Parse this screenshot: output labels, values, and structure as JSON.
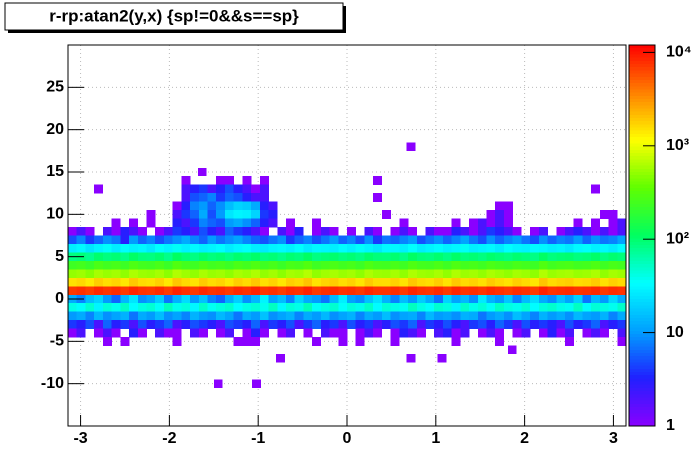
{
  "chart_data": {
    "type": "heatmap",
    "title": "r-rp:atan2(y,x) {sp!=0&&s==sp}",
    "xlim": [
      -3.1416,
      3.1416
    ],
    "ylim": [
      -15,
      30
    ],
    "zlim": [
      1,
      12000
    ],
    "logz": true,
    "grid": true,
    "xticks": [
      -3,
      -2,
      -1,
      0,
      1,
      2,
      3
    ],
    "yticks": [
      -10,
      -5,
      0,
      5,
      10,
      15,
      20,
      25
    ],
    "zticks": [
      1,
      10,
      {
        "value": 100,
        "label": "10²"
      },
      {
        "value": 1000,
        "label": "10³"
      },
      {
        "value": 10000,
        "label": "10⁴"
      }
    ],
    "palette": [
      "#8a00ff",
      "#2020ff",
      "#00a0ff",
      "#00ffff",
      "#00ff60",
      "#60ff00",
      "#ffff00",
      "#ff8000",
      "#ff0000"
    ],
    "y": [
      14,
      13,
      12,
      11,
      10,
      9,
      8,
      7,
      6,
      5,
      4,
      3,
      2,
      1,
      0,
      -1,
      -2,
      -3,
      -4,
      -5
    ],
    "z": [
      [
        null,
        null,
        null,
        null,
        null,
        null,
        null,
        null,
        null,
        null,
        null,
        null,
        null,
        1,
        null,
        null,
        null,
        1,
        1,
        null,
        1,
        null,
        1,
        null,
        null,
        null,
        null,
        null,
        null,
        null,
        null,
        null,
        null,
        null,
        null,
        1,
        null,
        null,
        null,
        null,
        null,
        null,
        null,
        null,
        null,
        null,
        null,
        null,
        null,
        null,
        null,
        null,
        null,
        null,
        null,
        null,
        null,
        null,
        null,
        null,
        null,
        null,
        null,
        null
      ],
      [
        null,
        null,
        null,
        1,
        null,
        null,
        null,
        null,
        null,
        null,
        null,
        null,
        null,
        2,
        3,
        4,
        2,
        3,
        5,
        3,
        2,
        1,
        2,
        null,
        null,
        null,
        null,
        null,
        null,
        null,
        null,
        null,
        null,
        null,
        null,
        null,
        null,
        null,
        null,
        null,
        null,
        null,
        null,
        null,
        null,
        null,
        null,
        null,
        null,
        null,
        null,
        null,
        null,
        null,
        null,
        null,
        null,
        null,
        null,
        null,
        1,
        null,
        null,
        null
      ],
      [
        null,
        null,
        null,
        null,
        null,
        null,
        null,
        null,
        null,
        null,
        null,
        null,
        null,
        2,
        5,
        6,
        8,
        4,
        6,
        5,
        3,
        2,
        2,
        null,
        null,
        null,
        null,
        null,
        null,
        null,
        null,
        null,
        null,
        null,
        null,
        1,
        null,
        null,
        null,
        null,
        null,
        null,
        null,
        null,
        null,
        null,
        null,
        null,
        null,
        null,
        null,
        null,
        null,
        null,
        null,
        null,
        null,
        null,
        null,
        null,
        null,
        null,
        null,
        null
      ],
      [
        null,
        null,
        null,
        null,
        null,
        null,
        null,
        null,
        null,
        null,
        null,
        null,
        1,
        3,
        8,
        10,
        6,
        9,
        15,
        20,
        18,
        12,
        3,
        2,
        null,
        null,
        null,
        null,
        null,
        null,
        null,
        null,
        null,
        null,
        null,
        null,
        null,
        null,
        null,
        null,
        null,
        null,
        null,
        null,
        null,
        null,
        null,
        null,
        null,
        1,
        1,
        null,
        null,
        null,
        null,
        null,
        null,
        null,
        null,
        null,
        null,
        null,
        null,
        null
      ],
      [
        null,
        null,
        null,
        null,
        null,
        null,
        null,
        null,
        null,
        1,
        null,
        null,
        2,
        4,
        6,
        12,
        5,
        10,
        25,
        30,
        28,
        20,
        4,
        3,
        null,
        null,
        null,
        null,
        null,
        null,
        null,
        null,
        null,
        null,
        null,
        null,
        1,
        null,
        null,
        null,
        null,
        null,
        null,
        null,
        null,
        null,
        null,
        null,
        1,
        2,
        1,
        null,
        null,
        null,
        null,
        null,
        null,
        null,
        null,
        null,
        null,
        1,
        1,
        null
      ],
      [
        null,
        null,
        null,
        null,
        null,
        1,
        null,
        1,
        null,
        1,
        null,
        null,
        3,
        2,
        4,
        8,
        6,
        5,
        10,
        12,
        9,
        6,
        3,
        2,
        null,
        1,
        null,
        null,
        1,
        null,
        null,
        null,
        null,
        null,
        null,
        null,
        null,
        null,
        1,
        null,
        null,
        null,
        null,
        null,
        1,
        null,
        1,
        2,
        1,
        2,
        1,
        null,
        null,
        null,
        null,
        null,
        null,
        null,
        1,
        null,
        1,
        null,
        1,
        2
      ],
      [
        1,
        2,
        1,
        null,
        2,
        1,
        3,
        2,
        1,
        null,
        1,
        2,
        4,
        3,
        2,
        5,
        3,
        2,
        6,
        4,
        3,
        2,
        1,
        null,
        2,
        1,
        3,
        null,
        1,
        2,
        1,
        null,
        1,
        null,
        2,
        1,
        null,
        1,
        2,
        1,
        null,
        2,
        1,
        1,
        3,
        2,
        1,
        2,
        4,
        3,
        2,
        1,
        null,
        1,
        2,
        null,
        1,
        2,
        3,
        2,
        1,
        2,
        1,
        2
      ],
      [
        5,
        8,
        4,
        6,
        9,
        7,
        3,
        10,
        6,
        8,
        5,
        7,
        9,
        12,
        8,
        6,
        10,
        7,
        9,
        11,
        8,
        6,
        5,
        7,
        9,
        4,
        6,
        8,
        5,
        7,
        10,
        6,
        8,
        5,
        9,
        4,
        7,
        6,
        8,
        10,
        5,
        7,
        9,
        6,
        8,
        11,
        7,
        5,
        9,
        6,
        8,
        10,
        7,
        5,
        9,
        6,
        8,
        7,
        10,
        6,
        9,
        7,
        8,
        11
      ],
      [
        28,
        32,
        25,
        30,
        35,
        27,
        33,
        29,
        31,
        26,
        34,
        30,
        36,
        29,
        32,
        28,
        30,
        33,
        27,
        31,
        35,
        28,
        26,
        30,
        32,
        29,
        34,
        27,
        31,
        30,
        28,
        33,
        29,
        35,
        30,
        26,
        32,
        31,
        28,
        34,
        27,
        30,
        33,
        29,
        31,
        36,
        28,
        30,
        32,
        27,
        34,
        30,
        29,
        33,
        31,
        28,
        30,
        26,
        32,
        35,
        29,
        31,
        27,
        33
      ],
      [
        85,
        92,
        78,
        100,
        88,
        95,
        82,
        105,
        90,
        87,
        98,
        80,
        110,
        93,
        86,
        101,
        89,
        96,
        84,
        99,
        91,
        103,
        87,
        94,
        82,
        97,
        90,
        108,
        86,
        93,
        100,
        88,
        95,
        84,
        102,
        91,
        89,
        97,
        83,
        106,
        92,
        88,
        99,
        85,
        104,
        90,
        96,
        87,
        101,
        93,
        86,
        98,
        91,
        84,
        107,
        89,
        95,
        99,
        88,
        92,
        104,
        86,
        97,
        90
      ],
      [
        230,
        250,
        215,
        270,
        240,
        260,
        225,
        280,
        245,
        235,
        265,
        220,
        290,
        250,
        230,
        275,
        240,
        255,
        225,
        270,
        245,
        285,
        235,
        260,
        220,
        265,
        250,
        295,
        230,
        255,
        270,
        240,
        260,
        225,
        280,
        245,
        240,
        265,
        230,
        285,
        250,
        240,
        270,
        230,
        285,
        245,
        260,
        235,
        275,
        250,
        230,
        265,
        245,
        225,
        290,
        240,
        260,
        270,
        240,
        250,
        280,
        230,
        265,
        245
      ],
      [
        520,
        560,
        480,
        600,
        540,
        580,
        500,
        620,
        550,
        530,
        590,
        490,
        640,
        560,
        510,
        610,
        540,
        570,
        500,
        600,
        550,
        630,
        520,
        580,
        490,
        590,
        560,
        660,
        510,
        570,
        600,
        540,
        580,
        500,
        620,
        550,
        540,
        590,
        510,
        630,
        560,
        540,
        600,
        510,
        630,
        550,
        580,
        520,
        610,
        560,
        510,
        590,
        550,
        500,
        650,
        540,
        580,
        600,
        540,
        560,
        620,
        510,
        590,
        550
      ],
      [
        1500,
        1650,
        1400,
        1800,
        1550,
        1700,
        1450,
        1900,
        1600,
        1520,
        1750,
        1420,
        1950,
        1650,
        1480,
        1850,
        1580,
        1700,
        1460,
        1800,
        1600,
        1900,
        1520,
        1720,
        1430,
        1780,
        1640,
        2000,
        1500,
        1700,
        1820,
        1560,
        1720,
        1460,
        1880,
        1600,
        1580,
        1760,
        1490,
        1920,
        1650,
        1560,
        1800,
        1480,
        1900,
        1600,
        1720,
        1520,
        1850,
        1650,
        1500,
        1780,
        1600,
        1450,
        1960,
        1580,
        1720,
        1800,
        1580,
        1650,
        1880,
        1500,
        1760,
        1600
      ],
      [
        7200,
        7800,
        6900,
        8200,
        7400,
        8000,
        7100,
        8500,
        7600,
        7300,
        8100,
        7000,
        8700,
        7700,
        7200,
        8300,
        7500,
        7900,
        7100,
        8200,
        7600,
        8600,
        7300,
        7800,
        6900,
        8100,
        7700,
        8900,
        7200,
        7900,
        8300,
        7500,
        7900,
        7100,
        8400,
        7600,
        7500,
        8000,
        7200,
        8600,
        7700,
        7400,
        8200,
        7100,
        8500,
        7600,
        7900,
        7300,
        8300,
        7700,
        7200,
        8000,
        7600,
        7000,
        8800,
        7500,
        7900,
        8200,
        7500,
        7700,
        8400,
        7200,
        8000,
        7600
      ],
      [
        12,
        8,
        15,
        20,
        10,
        6,
        14,
        25,
        9,
        11,
        18,
        7,
        13,
        22,
        10,
        16,
        8,
        6,
        12,
        19,
        9,
        14,
        30,
        11,
        15,
        8,
        20,
        12,
        10,
        7,
        14,
        28,
        11,
        9,
        16,
        24,
        13,
        8,
        15,
        10,
        18,
        12,
        7,
        20,
        11,
        14,
        9,
        26,
        13,
        10,
        17,
        8,
        15,
        22,
        12,
        9,
        16,
        11,
        19,
        7,
        14,
        10,
        21,
        12
      ],
      [
        40,
        35,
        48,
        30,
        45,
        38,
        52,
        33,
        42,
        47,
        36,
        55,
        39,
        44,
        31,
        50,
        37,
        43,
        49,
        34,
        41,
        46,
        38,
        53,
        32,
        45,
        40,
        57,
        36,
        42,
        48,
        35,
        44,
        39,
        51,
        33,
        46,
        40,
        37,
        54,
        41,
        35,
        48,
        43,
        30,
        50,
        39,
        45,
        36,
        52,
        42,
        38,
        47,
        33,
        44,
        49,
        40,
        37,
        53,
        35,
        46,
        42,
        38,
        50
      ],
      [
        10,
        12,
        8,
        14,
        9,
        11,
        13,
        7,
        12,
        10,
        15,
        9,
        11,
        8,
        13,
        10,
        9,
        14,
        11,
        7,
        12,
        10,
        16,
        9,
        11,
        13,
        8,
        12,
        10,
        14,
        9,
        11,
        13,
        8,
        12,
        10,
        15,
        9,
        11,
        12,
        8,
        14,
        10,
        11,
        9,
        13,
        12,
        7,
        10,
        12,
        9,
        15,
        11,
        8,
        13,
        10,
        12,
        9,
        14,
        11,
        10,
        13,
        8,
        12
      ],
      [
        4,
        3,
        5,
        2,
        6,
        3,
        4,
        2,
        5,
        3,
        4,
        6,
        2,
        3,
        5,
        4,
        3,
        2,
        5,
        4,
        3,
        6,
        2,
        4,
        3,
        5,
        2,
        4,
        6,
        3,
        4,
        2,
        5,
        3,
        4,
        2,
        3,
        5,
        4,
        6,
        2,
        4,
        3,
        5,
        3,
        2,
        4,
        5,
        3,
        6,
        4,
        2,
        5,
        3,
        4,
        3,
        2,
        5,
        3,
        4,
        6,
        2,
        3,
        4
      ],
      [
        1,
        2,
        null,
        1,
        2,
        1,
        null,
        3,
        1,
        null,
        2,
        1,
        1,
        null,
        2,
        1,
        null,
        1,
        2,
        null,
        1,
        3,
        1,
        null,
        1,
        2,
        null,
        1,
        null,
        2,
        1,
        1,
        null,
        1,
        2,
        1,
        null,
        1,
        3,
        2,
        1,
        null,
        2,
        3,
        1,
        2,
        null,
        1,
        2,
        1,
        null,
        1,
        2,
        null,
        1,
        3,
        1,
        2,
        null,
        1,
        2,
        1,
        null,
        2
      ],
      [
        null,
        null,
        null,
        null,
        1,
        null,
        1,
        null,
        null,
        null,
        null,
        null,
        1,
        null,
        null,
        null,
        null,
        null,
        null,
        1,
        1,
        1,
        null,
        null,
        null,
        null,
        null,
        null,
        1,
        null,
        null,
        1,
        null,
        1,
        null,
        null,
        null,
        1,
        null,
        null,
        null,
        null,
        null,
        null,
        1,
        null,
        null,
        null,
        null,
        1,
        null,
        null,
        null,
        null,
        null,
        null,
        null,
        1,
        null,
        null,
        null,
        null,
        null,
        1
      ]
    ],
    "points": [
      {
        "x": -1.63,
        "y": 15,
        "z": 1
      },
      {
        "x": 0.72,
        "y": 18,
        "z": 1
      },
      {
        "x": -0.75,
        "y": -7,
        "z": 1
      },
      {
        "x": 0.72,
        "y": -7,
        "z": 1
      },
      {
        "x": 1.07,
        "y": -7,
        "z": 1
      },
      {
        "x": 1.86,
        "y": -6,
        "z": 1
      },
      {
        "x": -1.45,
        "y": -10,
        "z": 1
      },
      {
        "x": -1.02,
        "y": -10,
        "z": 1
      }
    ]
  }
}
